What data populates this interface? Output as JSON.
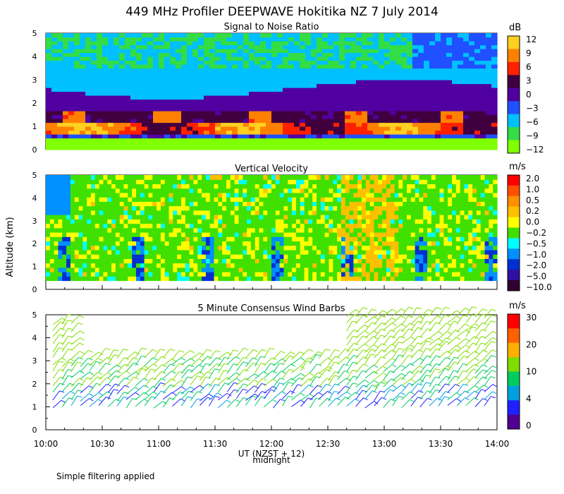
{
  "title": "449 MHz Profiler DEEPWAVE Hokitika NZ  7 July 2014",
  "ylabel": "Altitude (km)",
  "xlabel": "UT  (NZST + 12)",
  "midnight_label": "midnight",
  "note": "Simple filtering applied",
  "chart_data": [
    {
      "type": "heatmap",
      "title": "Signal to Noise Ratio",
      "xlabel": "UT  (NZST + 12)",
      "ylabel": "Altitude (km)",
      "x_ticks": [
        "10:00",
        "10:30",
        "11:00",
        "11:30",
        "12:00",
        "12:30",
        "13:00",
        "13:30",
        "14:00"
      ],
      "x_range_hours": [
        10,
        14
      ],
      "ylim": [
        0,
        5
      ],
      "y_ticks": [
        0,
        1,
        2,
        3,
        4,
        5
      ],
      "colorbar_unit": "dB",
      "colorbar_levels": [
        -12,
        -9,
        -6,
        -3,
        0,
        3,
        6,
        9,
        12
      ],
      "colorbar_labels": [
        "12",
        "9",
        "6",
        "3",
        "0",
        "−3",
        "−6",
        "−9",
        "−12"
      ],
      "colors": [
        "#80ff00",
        "#33dd44",
        "#00c0ff",
        "#2050ff",
        "#5000a0",
        "#400030",
        "#ff2000",
        "#ff8000",
        "#ffd020"
      ],
      "profile_km": [
        {
          "alt": 0.3,
          "value": -10
        },
        {
          "alt": 0.6,
          "value": -2
        },
        {
          "alt": 0.95,
          "value": 7
        },
        {
          "alt": 1.3,
          "value": 1
        },
        {
          "alt": 2.0,
          "value": -1
        },
        {
          "alt": 2.8,
          "value": -5
        },
        {
          "alt": 3.5,
          "value": -8
        },
        {
          "alt": 4.5,
          "value": -9
        }
      ]
    },
    {
      "type": "heatmap",
      "title": "Vertical Velocity",
      "xlabel": "UT  (NZST + 12)",
      "ylabel": "Altitude (km)",
      "x_ticks": [
        "10:00",
        "10:30",
        "11:00",
        "11:30",
        "12:00",
        "12:30",
        "13:00",
        "13:30",
        "14:00"
      ],
      "ylim": [
        0,
        5
      ],
      "y_ticks": [
        0,
        1,
        2,
        3,
        4,
        5
      ],
      "colorbar_unit": "m/s",
      "colorbar_levels": [
        2.0,
        1.0,
        0.5,
        0.2,
        0.0,
        -0.2,
        -0.5,
        -1.0,
        -2.0,
        -5.0,
        -10.0
      ],
      "colorbar_labels": [
        "2.0",
        "1.0",
        "0.5",
        "0.2",
        "0.0",
        "−0.2",
        "−0.5",
        "−1.0",
        "−2.0",
        "−5.0",
        "−10.0"
      ],
      "colors": [
        "#ff0000",
        "#ff5000",
        "#ff9000",
        "#ffc000",
        "#ffff00",
        "#40e000",
        "#00ffff",
        "#0090ff",
        "#0030d0",
        "#3010a0",
        "#300030"
      ],
      "typical_range_m_s": [
        -0.5,
        0.2
      ]
    },
    {
      "type": "wind_barbs",
      "title": "5 Minute Consensus Wind Barbs",
      "xlabel": "UT  (NZST + 12)",
      "ylabel": "Altitude (km)",
      "x_ticks": [
        "10:00",
        "10:30",
        "11:00",
        "11:30",
        "12:00",
        "12:30",
        "13:00",
        "13:30",
        "14:00"
      ],
      "ylim": [
        0,
        5
      ],
      "y_ticks": [
        0,
        1,
        2,
        3,
        4,
        5
      ],
      "colorbar_unit": "m/s",
      "colorbar_labels": [
        "30",
        "20",
        "10",
        "4",
        "0"
      ],
      "colorbar_values": [
        30,
        20,
        10,
        4,
        0
      ],
      "colors": [
        "#ff0000",
        "#ff6000",
        "#ffb000",
        "#80dd00",
        "#00cc60",
        "#00a0e0",
        "#2020ff",
        "#500090"
      ],
      "typical_speed_m_s": [
        4,
        15
      ],
      "barb_top_km": 3.3,
      "upper_barbs_after": "12:30"
    }
  ]
}
